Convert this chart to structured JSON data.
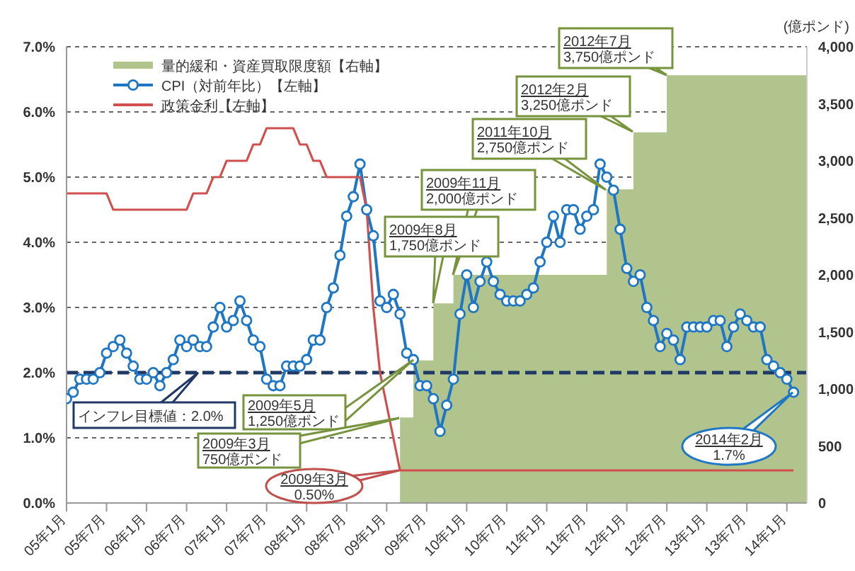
{
  "chart_data": {
    "type": "line",
    "x": [
      "2005-01",
      "2005-02",
      "2005-03",
      "2005-04",
      "2005-05",
      "2005-06",
      "2005-07",
      "2005-08",
      "2005-09",
      "2005-10",
      "2005-11",
      "2005-12",
      "2006-01",
      "2006-02",
      "2006-03",
      "2006-04",
      "2006-05",
      "2006-06",
      "2006-07",
      "2006-08",
      "2006-09",
      "2006-10",
      "2006-11",
      "2006-12",
      "2007-01",
      "2007-02",
      "2007-03",
      "2007-04",
      "2007-05",
      "2007-06",
      "2007-07",
      "2007-08",
      "2007-09",
      "2007-10",
      "2007-11",
      "2007-12",
      "2008-01",
      "2008-02",
      "2008-03",
      "2008-04",
      "2008-05",
      "2008-06",
      "2008-07",
      "2008-08",
      "2008-09",
      "2008-10",
      "2008-11",
      "2008-12",
      "2009-01",
      "2009-02",
      "2009-03",
      "2009-04",
      "2009-05",
      "2009-06",
      "2009-07",
      "2009-08",
      "2009-09",
      "2009-10",
      "2009-11",
      "2009-12",
      "2010-01",
      "2010-02",
      "2010-03",
      "2010-04",
      "2010-05",
      "2010-06",
      "2010-07",
      "2010-08",
      "2010-09",
      "2010-10",
      "2010-11",
      "2010-12",
      "2011-01",
      "2011-02",
      "2011-03",
      "2011-04",
      "2011-05",
      "2011-06",
      "2011-07",
      "2011-08",
      "2011-09",
      "2011-10",
      "2011-11",
      "2011-12",
      "2012-01",
      "2012-02",
      "2012-03",
      "2012-04",
      "2012-05",
      "2012-06",
      "2012-07",
      "2012-08",
      "2012-09",
      "2012-10",
      "2012-11",
      "2012-12",
      "2013-01",
      "2013-02",
      "2013-03",
      "2013-04",
      "2013-05",
      "2013-06",
      "2013-07",
      "2013-08",
      "2013-09",
      "2013-10",
      "2013-11",
      "2013-12",
      "2014-01",
      "2014-02"
    ],
    "series": [
      {
        "name": "量的緩和・資産買取限度額【右軸】",
        "type": "area",
        "axis": "y2",
        "color": "#b1c48e",
        "x": [
          "2009-03",
          "2009-05",
          "2009-08",
          "2009-11",
          "2011-10",
          "2012-02",
          "2012-07",
          "2014-04"
        ],
        "values": [
          750,
          1250,
          1750,
          2000,
          2750,
          3250,
          3750,
          3750
        ]
      },
      {
        "name": "CPI（対前年比）【左軸】",
        "marker": "circle",
        "color": "#1f77c4",
        "values": [
          1.6,
          1.7,
          1.9,
          1.9,
          1.9,
          2.0,
          2.3,
          2.4,
          2.5,
          2.3,
          2.1,
          1.9,
          1.9,
          2.0,
          1.8,
          2.0,
          2.2,
          2.5,
          2.4,
          2.5,
          2.4,
          2.4,
          2.7,
          3.0,
          2.7,
          2.8,
          3.1,
          2.8,
          2.5,
          2.4,
          1.9,
          1.8,
          1.8,
          2.1,
          2.1,
          2.1,
          2.2,
          2.5,
          2.5,
          3.0,
          3.3,
          3.8,
          4.4,
          4.7,
          5.2,
          4.5,
          4.1,
          3.1,
          3.0,
          3.2,
          2.9,
          2.3,
          2.2,
          1.8,
          1.8,
          1.6,
          1.1,
          1.5,
          1.9,
          2.9,
          3.5,
          3.0,
          3.4,
          3.7,
          3.4,
          3.2,
          3.1,
          3.1,
          3.1,
          3.2,
          3.3,
          3.7,
          4.0,
          4.4,
          4.0,
          4.5,
          4.5,
          4.2,
          4.4,
          4.5,
          5.2,
          5.0,
          4.8,
          4.2,
          3.6,
          3.4,
          3.5,
          3.0,
          2.8,
          2.4,
          2.6,
          2.5,
          2.2,
          2.7,
          2.7,
          2.7,
          2.7,
          2.8,
          2.8,
          2.4,
          2.7,
          2.9,
          2.8,
          2.7,
          2.7,
          2.2,
          2.1,
          2.0,
          1.9,
          1.7
        ]
      },
      {
        "name": "政策金利【左軸】",
        "marker": "none",
        "color": "#d05050",
        "values": [
          4.75,
          4.75,
          4.75,
          4.75,
          4.75,
          4.75,
          4.75,
          4.5,
          4.5,
          4.5,
          4.5,
          4.5,
          4.5,
          4.5,
          4.5,
          4.5,
          4.5,
          4.5,
          4.5,
          4.75,
          4.75,
          4.75,
          5.0,
          5.0,
          5.25,
          5.25,
          5.25,
          5.25,
          5.5,
          5.5,
          5.75,
          5.75,
          5.75,
          5.75,
          5.75,
          5.5,
          5.5,
          5.25,
          5.25,
          5.0,
          5.0,
          5.0,
          5.0,
          5.0,
          5.0,
          4.5,
          3.0,
          2.0,
          1.5,
          1.0,
          0.5,
          0.5,
          0.5,
          0.5,
          0.5,
          0.5,
          0.5,
          0.5,
          0.5,
          0.5,
          0.5,
          0.5,
          0.5,
          0.5,
          0.5,
          0.5,
          0.5,
          0.5,
          0.5,
          0.5,
          0.5,
          0.5,
          0.5,
          0.5,
          0.5,
          0.5,
          0.5,
          0.5,
          0.5,
          0.5,
          0.5,
          0.5,
          0.5,
          0.5,
          0.5,
          0.5,
          0.5,
          0.5,
          0.5,
          0.5,
          0.5,
          0.5,
          0.5,
          0.5,
          0.5,
          0.5,
          0.5,
          0.5,
          0.5,
          0.5,
          0.5,
          0.5,
          0.5,
          0.5,
          0.5,
          0.5,
          0.5,
          0.5,
          0.5,
          0.5
        ]
      }
    ],
    "y2label": "(億ポンド)",
    "xlim": [
      "2005-01",
      "2014-04"
    ],
    "xticks": [
      {
        "value": "2005-01",
        "label": "05年1月"
      },
      {
        "value": "2005-07",
        "label": "05年7月"
      },
      {
        "value": "2006-01",
        "label": "06年1月"
      },
      {
        "value": "2006-07",
        "label": "06年7月"
      },
      {
        "value": "2007-01",
        "label": "07年1月"
      },
      {
        "value": "2007-07",
        "label": "07年7月"
      },
      {
        "value": "2008-01",
        "label": "08年1月"
      },
      {
        "value": "2008-07",
        "label": "08年7月"
      },
      {
        "value": "2009-01",
        "label": "09年1月"
      },
      {
        "value": "2009-07",
        "label": "09年7月"
      },
      {
        "value": "2010-01",
        "label": "10年1月"
      },
      {
        "value": "2010-07",
        "label": "10年7月"
      },
      {
        "value": "2011-01",
        "label": "11年1月"
      },
      {
        "value": "2011-07",
        "label": "11年7月"
      },
      {
        "value": "2012-01",
        "label": "12年1月"
      },
      {
        "value": "2012-07",
        "label": "12年7月"
      },
      {
        "value": "2013-01",
        "label": "13年1月"
      },
      {
        "value": "2013-07",
        "label": "13年7月"
      },
      {
        "value": "2014-01",
        "label": "14年1月"
      }
    ],
    "ylim": [
      0,
      7
    ],
    "yticks": [
      {
        "value": 0,
        "label": "0.0%"
      },
      {
        "value": 1,
        "label": "1.0%"
      },
      {
        "value": 2,
        "label": "2.0%"
      },
      {
        "value": 3,
        "label": "3.0%"
      },
      {
        "value": 4,
        "label": "4.0%"
      },
      {
        "value": 5,
        "label": "5.0%"
      },
      {
        "value": 6,
        "label": "6.0%"
      },
      {
        "value": 7,
        "label": "7.0%"
      }
    ],
    "y2lim": [
      0,
      4000
    ],
    "y2ticks": [
      0,
      {
        "value": 500,
        "label": "500"
      },
      {
        "value": 1000,
        "label": "1,000"
      },
      {
        "value": 1500,
        "label": "1,500"
      },
      {
        "value": 2000,
        "label": "2,000"
      },
      {
        "value": 2500,
        "label": "2,500"
      },
      {
        "value": 3000,
        "label": "3,000"
      },
      {
        "value": 3500,
        "label": "3,500"
      },
      {
        "value": 4000,
        "label": "4,000"
      }
    ],
    "ref_lines": [
      {
        "axis": "y",
        "value": 2.0,
        "label": "インフレ目標値：2.0%",
        "color": "#1f3864",
        "line_style": "dashed"
      }
    ],
    "annotations": [
      "2012年7月\n3,750億ポンド",
      "2012年2月\n3,250億ポンド",
      "2011年10月\n2,750億ポンド",
      "2009年11月\n2,000億ポンド",
      "2009年8月\n1,750億ポンド",
      "2009年5月\n1,250億ポンド",
      "2009年3月\n750億ポンド",
      "2009年3月\n0.50%",
      "2014年2月\n1.7%"
    ],
    "grid": "y",
    "legend": "top left"
  }
}
